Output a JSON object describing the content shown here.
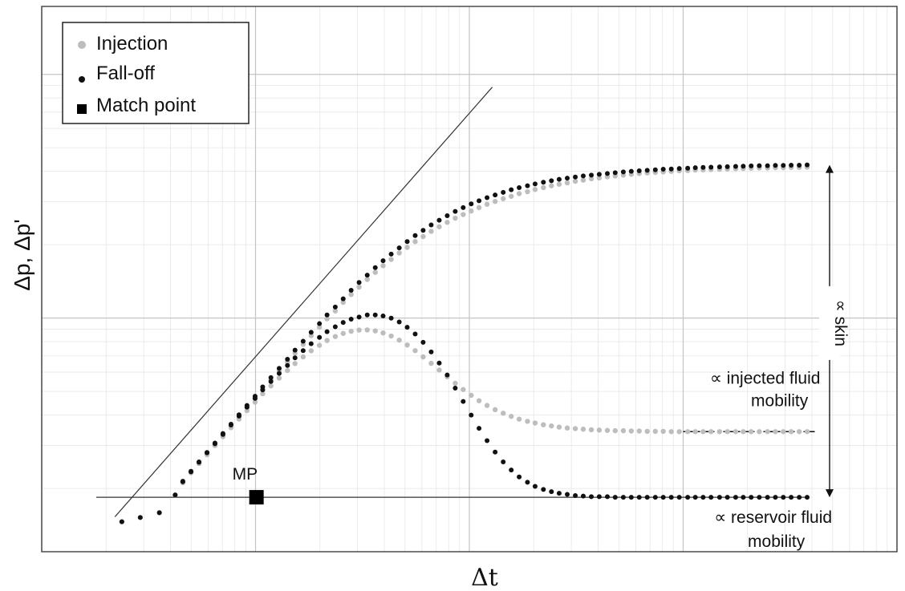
{
  "chart_data": {
    "type": "scatter",
    "scale": {
      "x": "log",
      "y": "log"
    },
    "xlabel": "Δt",
    "ylabel": "Δp, Δp'",
    "grid": true,
    "xlim": [
      0.01,
      100
    ],
    "ylim": [
      0.011,
      1.9
    ],
    "colors": {
      "injection": "#bdbdbd",
      "falloff": "#111111",
      "match_point": "#000000",
      "lines": "#333333"
    },
    "legend": {
      "placement": "top-left",
      "entries": [
        {
          "label": "Injection",
          "marker": "circle",
          "color": "#bdbdbd"
        },
        {
          "label": "Fall-off",
          "marker": "circle",
          "color": "#111111"
        },
        {
          "label": "Match point",
          "marker": "square",
          "color": "#000000"
        }
      ]
    },
    "series": [
      {
        "name": "Injection",
        "curves": [
          {
            "role": "pressure",
            "x": [
              0.0237,
              0.0289,
              0.0355,
              0.0421,
              0.0457,
              0.0499,
              0.0544,
              0.0593,
              0.0646,
              0.0704,
              0.0768,
              0.0837,
              0.0912,
              0.0995,
              0.108,
              0.118,
              0.129,
              0.141,
              0.153,
              0.167,
              0.182,
              0.199,
              0.216,
              0.236,
              0.257,
              0.28,
              0.305,
              0.333,
              0.363,
              0.395,
              0.431,
              0.47,
              0.512,
              0.558,
              0.608,
              0.663,
              0.723,
              0.788,
              0.859,
              0.936,
              1.02,
              1.11,
              1.21,
              1.32,
              1.44,
              1.57,
              1.71,
              1.87,
              2.03,
              2.22,
              2.42,
              2.63,
              2.87,
              3.13,
              3.41,
              3.72,
              4.05,
              4.42,
              4.81,
              5.25,
              5.72,
              6.23,
              6.79,
              7.41,
              8.07,
              8.8,
              9.59,
              10.5,
              11.4,
              12.4,
              13.5,
              14.8,
              16.1,
              17.6,
              19.1,
              20.8,
              22.7,
              24.8,
              27,
              29.4,
              32,
              34.9,
              38
            ],
            "y": [
              0.0146,
              0.0152,
              0.0159,
              0.0188,
              0.0212,
              0.0233,
              0.0255,
              0.0278,
              0.0304,
              0.0332,
              0.0362,
              0.0395,
              0.043,
              0.0469,
              0.0511,
              0.0557,
              0.0607,
              0.066,
              0.0718,
              0.078,
              0.0847,
              0.0918,
              0.0993,
              0.107,
              0.116,
              0.125,
              0.134,
              0.144,
              0.154,
              0.164,
              0.174,
              0.185,
              0.195,
              0.206,
              0.216,
              0.227,
              0.237,
              0.247,
              0.257,
              0.266,
              0.275,
              0.284,
              0.293,
              0.301,
              0.309,
              0.316,
              0.324,
              0.33,
              0.337,
              0.343,
              0.349,
              0.354,
              0.359,
              0.364,
              0.368,
              0.373,
              0.376,
              0.38,
              0.383,
              0.386,
              0.389,
              0.392,
              0.394,
              0.396,
              0.398,
              0.4,
              0.402,
              0.403,
              0.405,
              0.406,
              0.407,
              0.408,
              0.409,
              0.41,
              0.411,
              0.412,
              0.413,
              0.413,
              0.414,
              0.414,
              0.415,
              0.415,
              0.416
            ]
          },
          {
            "role": "derivative",
            "x": [
              0.0237,
              0.0289,
              0.0355,
              0.0421,
              0.0457,
              0.0499,
              0.0544,
              0.0593,
              0.0646,
              0.0704,
              0.0768,
              0.0837,
              0.0912,
              0.0995,
              0.108,
              0.118,
              0.129,
              0.141,
              0.153,
              0.167,
              0.182,
              0.199,
              0.216,
              0.236,
              0.257,
              0.28,
              0.305,
              0.333,
              0.363,
              0.395,
              0.431,
              0.47,
              0.512,
              0.558,
              0.608,
              0.663,
              0.723,
              0.788,
              0.859,
              0.936,
              1.02,
              1.11,
              1.21,
              1.32,
              1.44,
              1.57,
              1.71,
              1.87,
              2.03,
              2.22,
              2.42,
              2.63,
              2.87,
              3.13,
              3.41,
              3.72,
              4.05,
              4.42,
              4.81,
              5.25,
              5.72,
              6.23,
              6.79,
              7.41,
              8.07,
              8.8,
              9.59,
              10.5,
              11.4,
              12.4,
              13.5,
              14.8,
              16.1,
              17.6,
              19.1,
              20.8,
              22.7,
              24.8,
              27,
              29.4,
              32,
              34.9,
              38
            ],
            "y": [
              0.0146,
              0.0152,
              0.0159,
              0.0188,
              0.0211,
              0.0232,
              0.0253,
              0.0275,
              0.03,
              0.0326,
              0.0355,
              0.0385,
              0.0417,
              0.0452,
              0.0489,
              0.0527,
              0.0567,
              0.0609,
              0.0651,
              0.0693,
              0.0734,
              0.0773,
              0.0809,
              0.084,
              0.0865,
              0.0883,
              0.0893,
              0.0894,
              0.0886,
              0.0869,
              0.0844,
              0.0812,
              0.0775,
              0.0735,
              0.0693,
              0.0652,
              0.0612,
              0.0574,
              0.054,
              0.0509,
              0.0482,
              0.0458,
              0.0438,
              0.0421,
              0.0407,
              0.0395,
              0.0385,
              0.0377,
              0.0371,
              0.0365,
              0.0361,
              0.0357,
              0.0354,
              0.0352,
              0.035,
              0.0348,
              0.0347,
              0.0346,
              0.0345,
              0.0345,
              0.0344,
              0.0344,
              0.0343,
              0.0343,
              0.0343,
              0.0342,
              0.0342,
              0.0342,
              0.0342,
              0.0342,
              0.0342,
              0.0342,
              0.0342,
              0.0342,
              0.0342,
              0.0342,
              0.0342,
              0.0342,
              0.0342,
              0.0342,
              0.0342,
              0.0342,
              0.0342
            ]
          }
        ]
      },
      {
        "name": "Fall-off",
        "curves": [
          {
            "role": "pressure",
            "x": [
              0.0237,
              0.0289,
              0.0355,
              0.0421,
              0.0457,
              0.0499,
              0.0544,
              0.0593,
              0.0646,
              0.0704,
              0.0768,
              0.0837,
              0.0912,
              0.0995,
              0.108,
              0.118,
              0.129,
              0.141,
              0.153,
              0.167,
              0.182,
              0.199,
              0.216,
              0.236,
              0.257,
              0.28,
              0.305,
              0.333,
              0.363,
              0.395,
              0.431,
              0.47,
              0.512,
              0.558,
              0.608,
              0.663,
              0.723,
              0.788,
              0.859,
              0.936,
              1.02,
              1.11,
              1.21,
              1.32,
              1.44,
              1.57,
              1.71,
              1.87,
              2.03,
              2.22,
              2.42,
              2.63,
              2.87,
              3.13,
              3.41,
              3.72,
              4.05,
              4.42,
              4.81,
              5.25,
              5.72,
              6.23,
              6.79,
              7.41,
              8.07,
              8.8,
              9.59,
              10.5,
              11.4,
              12.4,
              13.5,
              14.8,
              16.1,
              17.6,
              19.1,
              20.8,
              22.7,
              24.8,
              27,
              29.4,
              32,
              34.9,
              38
            ],
            "y": [
              0.0146,
              0.0152,
              0.0159,
              0.0188,
              0.0214,
              0.0235,
              0.0257,
              0.0281,
              0.0307,
              0.0336,
              0.0367,
              0.0401,
              0.0438,
              0.0478,
              0.0522,
              0.057,
              0.0622,
              0.0678,
              0.0739,
              0.0804,
              0.0874,
              0.0949,
              0.103,
              0.111,
              0.12,
              0.13,
              0.14,
              0.15,
              0.161,
              0.172,
              0.183,
              0.194,
              0.206,
              0.218,
              0.229,
              0.241,
              0.252,
              0.263,
              0.274,
              0.284,
              0.294,
              0.303,
              0.312,
              0.32,
              0.328,
              0.336,
              0.343,
              0.349,
              0.355,
              0.361,
              0.366,
              0.371,
              0.375,
              0.379,
              0.383,
              0.386,
              0.389,
              0.392,
              0.395,
              0.398,
              0.4,
              0.402,
              0.404,
              0.406,
              0.408,
              0.409,
              0.411,
              0.412,
              0.414,
              0.415,
              0.416,
              0.417,
              0.418,
              0.419,
              0.42,
              0.421,
              0.422,
              0.422,
              0.423,
              0.423,
              0.424,
              0.424,
              0.425
            ]
          },
          {
            "role": "derivative",
            "x": [
              0.0237,
              0.0289,
              0.0355,
              0.0421,
              0.0457,
              0.0499,
              0.0544,
              0.0593,
              0.0646,
              0.0704,
              0.0768,
              0.0837,
              0.0912,
              0.0995,
              0.108,
              0.118,
              0.129,
              0.141,
              0.153,
              0.167,
              0.182,
              0.199,
              0.216,
              0.236,
              0.257,
              0.28,
              0.305,
              0.333,
              0.363,
              0.395,
              0.431,
              0.47,
              0.512,
              0.558,
              0.608,
              0.663,
              0.723,
              0.788,
              0.859,
              0.936,
              1.02,
              1.11,
              1.21,
              1.32,
              1.44,
              1.57,
              1.71,
              1.87,
              2.03,
              2.22,
              2.42,
              2.63,
              2.87,
              3.13,
              3.41,
              3.72,
              4.05,
              4.42,
              4.81,
              5.25,
              5.72,
              6.23,
              6.79,
              7.41,
              8.07,
              8.8,
              9.59,
              10.5,
              11.4,
              12.4,
              13.5,
              14.8,
              16.1,
              17.6,
              19.1,
              20.8,
              22.7,
              24.8,
              27,
              29.4,
              32,
              34.9,
              38
            ],
            "y": [
              0.0146,
              0.0152,
              0.0159,
              0.0188,
              0.0213,
              0.0234,
              0.0256,
              0.028,
              0.0305,
              0.0333,
              0.0364,
              0.0396,
              0.0431,
              0.0468,
              0.0507,
              0.0549,
              0.0593,
              0.0639,
              0.0687,
              0.0735,
              0.0785,
              0.0833,
              0.0879,
              0.0921,
              0.0959,
              0.099,
              0.101,
              0.103,
              0.103,
              0.102,
              0.0999,
              0.0964,
              0.0917,
              0.086,
              0.0795,
              0.0726,
              0.0654,
              0.0584,
              0.0516,
              0.0455,
              0.04,
              0.0353,
              0.0314,
              0.0282,
              0.0257,
              0.0238,
              0.0223,
              0.0212,
              0.0204,
              0.0198,
              0.0194,
              0.0191,
              0.0189,
              0.0187,
              0.0186,
              0.0185,
              0.0185,
              0.0185,
              0.0184,
              0.0184,
              0.0184,
              0.0184,
              0.0184,
              0.0184,
              0.0184,
              0.0184,
              0.0184,
              0.0184,
              0.0184,
              0.0184,
              0.0184,
              0.0184,
              0.0184,
              0.0184,
              0.0184,
              0.0184,
              0.0184,
              0.0184,
              0.0184,
              0.0184,
              0.0184,
              0.0184,
              0.0184
            ]
          }
        ]
      }
    ],
    "match_point": {
      "label": "MP",
      "x": 0.101,
      "y": 0.0184
    },
    "reference_lines": [
      {
        "kind": "unit-slope",
        "x": [
          0.022,
          1.28
        ],
        "y": [
          0.0153,
          0.886
        ]
      },
      {
        "kind": "horizontal",
        "y": 0.0184,
        "x": [
          0.018,
          38
        ]
      },
      {
        "kind": "dash-dot",
        "y": 0.0342,
        "x": [
          10,
          38
        ]
      }
    ],
    "annotations": {
      "skin": "∝ skin",
      "injected": [
        "∝ injected fluid",
        "mobility"
      ],
      "reservoir": [
        "∝ reservoir fluid",
        "mobility"
      ]
    },
    "skin_arrow": {
      "x": 38,
      "y_from": 0.0184,
      "y_to": 0.425
    }
  }
}
